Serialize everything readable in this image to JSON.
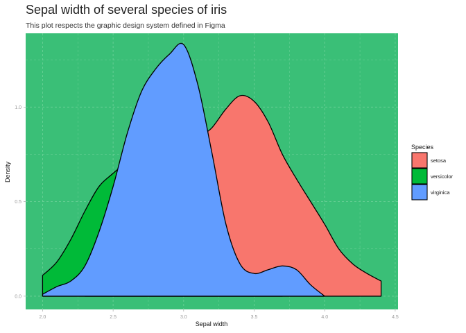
{
  "title": "Sepal width of several species of iris",
  "subtitle": "This plot respects the graphic design system defined in Figma",
  "colors": {
    "panel_background": "#3abf77",
    "grid": "#6fd29a",
    "setosa": "#f8766d",
    "versicolor": "#00ba38",
    "virginica": "#619cff",
    "outline": "#000000"
  },
  "chart_data": {
    "type": "area",
    "subtype": "density",
    "title": "Sepal width of several species of iris",
    "subtitle": "This plot respects the graphic design system defined in Figma",
    "xlabel": "Sepal width",
    "ylabel": "Density",
    "xlim": [
      1.88,
      4.52
    ],
    "ylim": [
      -0.07,
      1.39
    ],
    "xticks": [
      "2.0",
      "2.5",
      "3.0",
      "3.5",
      "4.0",
      "4.5"
    ],
    "xtick_values": [
      2.0,
      2.5,
      3.0,
      3.5,
      4.0,
      4.5
    ],
    "yticks": [
      "0.0",
      "0.5",
      "1.0"
    ],
    "ytick_values": [
      0.0,
      0.5,
      1.0
    ],
    "grid": true,
    "legend_title": "Species",
    "legend_position": "right",
    "series": [
      {
        "name": "setosa",
        "x": [
          2.3,
          2.5,
          2.7,
          2.9,
          3.0,
          3.1,
          3.2,
          3.3,
          3.4,
          3.5,
          3.6,
          3.7,
          3.8,
          3.9,
          4.0,
          4.1,
          4.2,
          4.3,
          4.4
        ],
        "y": [
          0.0,
          0.03,
          0.18,
          0.55,
          0.72,
          0.83,
          0.89,
          0.99,
          1.06,
          1.03,
          0.92,
          0.75,
          0.62,
          0.5,
          0.38,
          0.25,
          0.17,
          0.12,
          0.08
        ]
      },
      {
        "name": "versicolor",
        "x": [
          2.0,
          2.1,
          2.2,
          2.3,
          2.4,
          2.5,
          2.6,
          2.7,
          2.8,
          2.9,
          3.0,
          3.1,
          3.2,
          3.3,
          3.4,
          3.5,
          3.6,
          3.7
        ],
        "y": [
          0.11,
          0.18,
          0.3,
          0.45,
          0.58,
          0.65,
          0.72,
          0.86,
          1.13,
          1.25,
          1.18,
          0.9,
          0.55,
          0.28,
          0.12,
          0.05,
          0.02,
          0.0
        ]
      },
      {
        "name": "virginica",
        "x": [
          2.0,
          2.1,
          2.2,
          2.3,
          2.4,
          2.5,
          2.6,
          2.7,
          2.8,
          2.9,
          3.0,
          3.1,
          3.2,
          3.3,
          3.4,
          3.5,
          3.6,
          3.7,
          3.8,
          3.9,
          4.0
        ],
        "y": [
          0.01,
          0.05,
          0.08,
          0.16,
          0.34,
          0.58,
          0.86,
          1.08,
          1.2,
          1.28,
          1.33,
          1.12,
          0.76,
          0.38,
          0.17,
          0.12,
          0.14,
          0.16,
          0.14,
          0.06,
          0.0
        ]
      }
    ]
  }
}
